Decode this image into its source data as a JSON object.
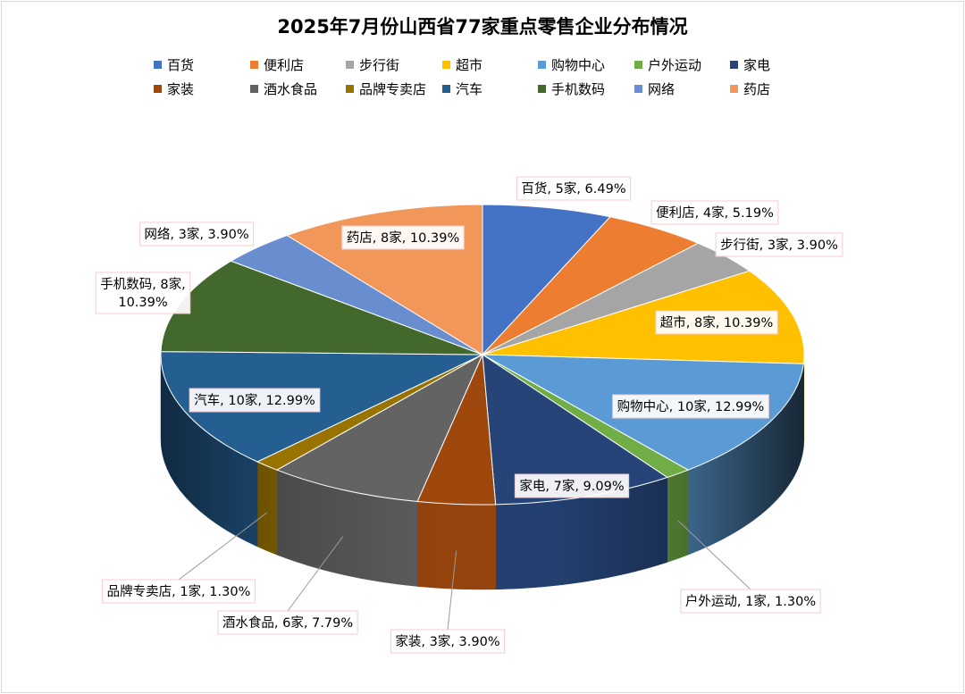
{
  "chart_data": {
    "type": "pie",
    "title": "2025年7月份山西省77家重点零售企业分布情况",
    "slices": [
      {
        "name": "百货",
        "count": 5,
        "count_label": "5家",
        "percent": 6.49,
        "percent_label": "6.49%",
        "color": "#4472c4"
      },
      {
        "name": "便利店",
        "count": 4,
        "count_label": "4家",
        "percent": 5.19,
        "percent_label": "5.19%",
        "color": "#ed7d31"
      },
      {
        "name": "步行街",
        "count": 3,
        "count_label": "3家",
        "percent": 3.9,
        "percent_label": "3.90%",
        "color": "#a5a5a5"
      },
      {
        "name": "超市",
        "count": 8,
        "count_label": "8家",
        "percent": 10.39,
        "percent_label": "10.39%",
        "color": "#ffc000"
      },
      {
        "name": "购物中心",
        "count": 10,
        "count_label": "10家",
        "percent": 12.99,
        "percent_label": "12.99%",
        "color": "#5b9bd5"
      },
      {
        "name": "户外运动",
        "count": 1,
        "count_label": "1家",
        "percent": 1.3,
        "percent_label": "1.30%",
        "color": "#70ad47"
      },
      {
        "name": "家电",
        "count": 7,
        "count_label": "7家",
        "percent": 9.09,
        "percent_label": "9.09%",
        "color": "#264478"
      },
      {
        "name": "家装",
        "count": 3,
        "count_label": "3家",
        "percent": 3.9,
        "percent_label": "3.90%",
        "color": "#9e480e"
      },
      {
        "name": "酒水食品",
        "count": 6,
        "count_label": "6家",
        "percent": 7.79,
        "percent_label": "7.79%",
        "color": "#636363"
      },
      {
        "name": "品牌专卖店",
        "count": 1,
        "count_label": "1家",
        "percent": 1.3,
        "percent_label": "1.30%",
        "color": "#997300"
      },
      {
        "name": "汽车",
        "count": 10,
        "count_label": "10家",
        "percent": 12.99,
        "percent_label": "12.99%",
        "color": "#255e91"
      },
      {
        "name": "手机数码",
        "count": 8,
        "count_label": "8家",
        "percent": 10.39,
        "percent_label": "10.39%",
        "color": "#43682b"
      },
      {
        "name": "网络",
        "count": 3,
        "count_label": "3家",
        "percent": 3.9,
        "percent_label": "3.90%",
        "color": "#698ed0"
      },
      {
        "name": "药店",
        "count": 8,
        "count_label": "8家",
        "percent": 10.39,
        "percent_label": "10.39%",
        "color": "#f1975a"
      }
    ],
    "legend_position": "top",
    "style": "3d-pie"
  }
}
